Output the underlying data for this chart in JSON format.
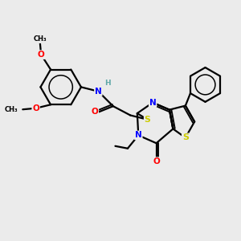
{
  "background_color": "#ebebeb",
  "atom_colors": {
    "C": "#000000",
    "N": "#0000ff",
    "O": "#ff0000",
    "S": "#cccc00",
    "H": "#5fa8a8"
  },
  "bond_color": "#000000",
  "bond_width": 1.6,
  "figsize": [
    3.0,
    3.0
  ],
  "dpi": 100
}
